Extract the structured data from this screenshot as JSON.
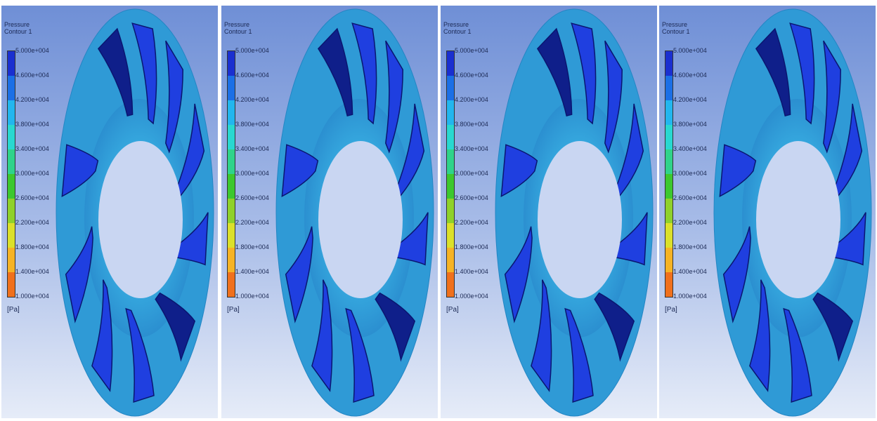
{
  "panels": [
    {
      "title_line1": "Pressure",
      "title_line2": "Contour 1"
    },
    {
      "title_line1": "Pressure",
      "title_line2": "Contour 1"
    },
    {
      "title_line1": "Pressure",
      "title_line2": "Contour 1"
    },
    {
      "title_line1": "Pressure",
      "title_line2": "Contour 1"
    }
  ],
  "legend": {
    "ticks": [
      "5.000e+004",
      "4.600e+004",
      "4.200e+004",
      "3.800e+004",
      "3.400e+004",
      "3.000e+004",
      "2.600e+004",
      "2.200e+004",
      "1.800e+004",
      "1.400e+004",
      "1.000e+004"
    ],
    "unit": "[Pa]",
    "band_colors": [
      "#1a2fd0",
      "#1b6fe6",
      "#22b6ee",
      "#28d8d0",
      "#2fd38a",
      "#3cc82e",
      "#8fd12a",
      "#dbe02a",
      "#f6b324",
      "#f0701c"
    ]
  }
}
